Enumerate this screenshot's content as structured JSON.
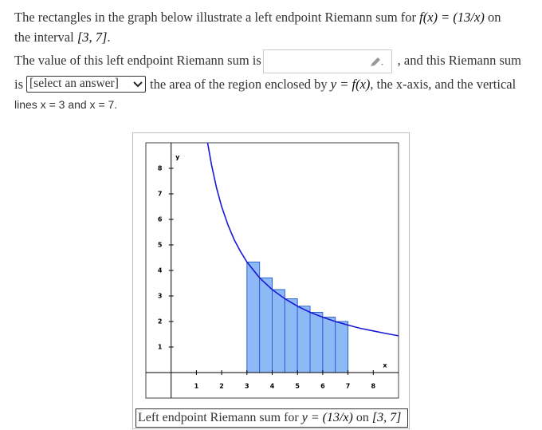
{
  "question": {
    "line1": "The rectangles in the graph below illustrate a left endpoint Riemann sum for ",
    "function": "f(x) = (13/x)",
    "line1_end": " on",
    "line2": "the interval ",
    "interval": "[3, 7]",
    "line2_end": ".",
    "line3": "The value of this left endpoint Riemann sum is",
    "line3_end": ", and this Riemann sum",
    "line4_start": "is",
    "select": "[select an answer]",
    "line4": "the area of the region enclosed by ",
    "region_curve": "y = f(x)",
    "line4_end": ", the x-axis, and the vertical",
    "line5": "lines x = 3 and x = 7."
  },
  "graph": {
    "type": "riemann",
    "x_label": "x",
    "y_label": "y",
    "xlim": [
      -1,
      9
    ],
    "ylim": [
      -1,
      9
    ],
    "xticks": [
      1,
      2,
      3,
      4,
      5,
      6,
      7,
      8
    ],
    "yticks": [
      1,
      2,
      3,
      4,
      5,
      6,
      7,
      8
    ],
    "rect_left": [
      3,
      3.5,
      4,
      4.5,
      5,
      5.5,
      6,
      6.5
    ],
    "rect_width": 0.5,
    "rect_heights": [
      4.33,
      3.71,
      3.25,
      2.89,
      2.6,
      2.36,
      2.17,
      2.0
    ],
    "rect_color": "#8fb8f7",
    "curve_x": [
      1.44,
      1.6,
      1.8,
      2,
      2.25,
      2.5,
      2.75,
      3,
      3.5,
      4,
      4.5,
      5,
      5.5,
      6,
      6.5,
      7,
      7.5,
      8,
      8.5,
      9
    ],
    "curve_y": [
      9.03,
      8.13,
      7.22,
      6.5,
      5.78,
      5.2,
      4.73,
      4.33,
      3.71,
      3.25,
      2.89,
      2.6,
      2.36,
      2.17,
      2.0,
      1.86,
      1.73,
      1.63,
      1.53,
      1.44
    ],
    "curve_color": "#1a1ad6"
  },
  "caption": {
    "text": "Left endpoint Riemann sum for ",
    "curve": "y = (13/x)",
    "on": " on ",
    "interval": "[3, 7]"
  }
}
